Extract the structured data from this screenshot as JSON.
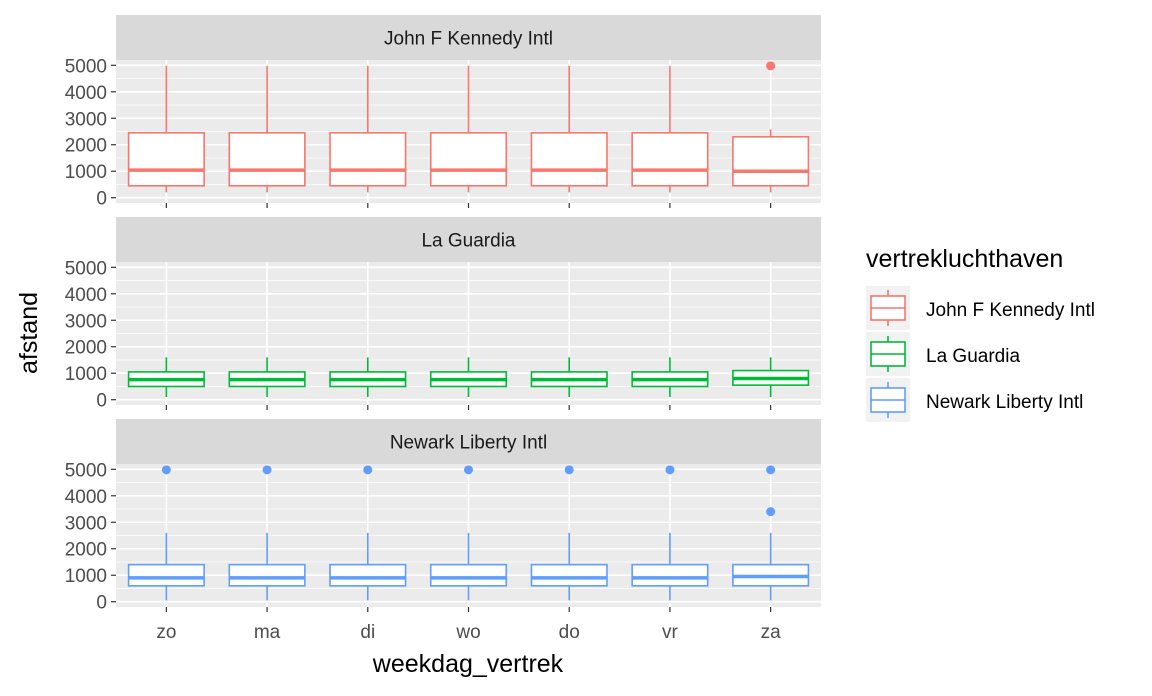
{
  "chart_data": {
    "type": "box",
    "xlabel": "weekdag_vertrek",
    "ylabel": "afstand",
    "categories": [
      "zo",
      "ma",
      "di",
      "wo",
      "do",
      "vr",
      "za"
    ],
    "y_ticks": [
      0,
      1000,
      2000,
      3000,
      4000,
      5000
    ],
    "ylim": [
      -200,
      5200
    ],
    "legend": {
      "title": "vertrekluchthaven",
      "position": "right",
      "items": [
        "John F Kennedy Intl",
        "La Guardia",
        "Newark Liberty Intl"
      ]
    },
    "panels": [
      {
        "title": "John F Kennedy Intl",
        "color": "#F8766D",
        "boxes": [
          {
            "category": "zo",
            "lower": 200,
            "q1": 450,
            "median": 1040,
            "q3": 2450,
            "upper": 4980,
            "outliers": []
          },
          {
            "category": "ma",
            "lower": 200,
            "q1": 450,
            "median": 1040,
            "q3": 2450,
            "upper": 4980,
            "outliers": []
          },
          {
            "category": "di",
            "lower": 200,
            "q1": 450,
            "median": 1040,
            "q3": 2450,
            "upper": 4980,
            "outliers": []
          },
          {
            "category": "wo",
            "lower": 200,
            "q1": 450,
            "median": 1040,
            "q3": 2450,
            "upper": 4980,
            "outliers": []
          },
          {
            "category": "do",
            "lower": 200,
            "q1": 450,
            "median": 1040,
            "q3": 2450,
            "upper": 4980,
            "outliers": []
          },
          {
            "category": "vr",
            "lower": 200,
            "q1": 450,
            "median": 1040,
            "q3": 2450,
            "upper": 4980,
            "outliers": []
          },
          {
            "category": "za",
            "lower": 200,
            "q1": 450,
            "median": 1000,
            "q3": 2300,
            "upper": 2580,
            "outliers": [
              4980
            ]
          }
        ]
      },
      {
        "title": "La Guardia",
        "color": "#00BA38",
        "boxes": [
          {
            "category": "zo",
            "lower": 100,
            "q1": 500,
            "median": 760,
            "q3": 1050,
            "upper": 1600,
            "outliers": []
          },
          {
            "category": "ma",
            "lower": 100,
            "q1": 500,
            "median": 760,
            "q3": 1050,
            "upper": 1600,
            "outliers": []
          },
          {
            "category": "di",
            "lower": 100,
            "q1": 500,
            "median": 760,
            "q3": 1050,
            "upper": 1600,
            "outliers": []
          },
          {
            "category": "wo",
            "lower": 100,
            "q1": 500,
            "median": 760,
            "q3": 1050,
            "upper": 1600,
            "outliers": []
          },
          {
            "category": "do",
            "lower": 100,
            "q1": 500,
            "median": 760,
            "q3": 1050,
            "upper": 1600,
            "outliers": []
          },
          {
            "category": "vr",
            "lower": 100,
            "q1": 500,
            "median": 760,
            "q3": 1050,
            "upper": 1600,
            "outliers": []
          },
          {
            "category": "za",
            "lower": 100,
            "q1": 550,
            "median": 800,
            "q3": 1100,
            "upper": 1600,
            "outliers": []
          }
        ]
      },
      {
        "title": "Newark Liberty Intl",
        "color": "#619CFF",
        "boxes": [
          {
            "category": "zo",
            "lower": 50,
            "q1": 600,
            "median": 900,
            "q3": 1400,
            "upper": 2600,
            "outliers": [
              4980
            ]
          },
          {
            "category": "ma",
            "lower": 50,
            "q1": 600,
            "median": 900,
            "q3": 1400,
            "upper": 2600,
            "outliers": [
              4980
            ]
          },
          {
            "category": "di",
            "lower": 50,
            "q1": 600,
            "median": 900,
            "q3": 1400,
            "upper": 2600,
            "outliers": [
              4980
            ]
          },
          {
            "category": "wo",
            "lower": 50,
            "q1": 600,
            "median": 900,
            "q3": 1400,
            "upper": 2600,
            "outliers": [
              4980
            ]
          },
          {
            "category": "do",
            "lower": 50,
            "q1": 600,
            "median": 900,
            "q3": 1400,
            "upper": 2600,
            "outliers": [
              4980
            ]
          },
          {
            "category": "vr",
            "lower": 50,
            "q1": 600,
            "median": 900,
            "q3": 1400,
            "upper": 2600,
            "outliers": [
              4980
            ]
          },
          {
            "category": "za",
            "lower": 50,
            "q1": 600,
            "median": 950,
            "q3": 1400,
            "upper": 2600,
            "outliers": [
              4980,
              3400
            ]
          }
        ]
      }
    ]
  }
}
